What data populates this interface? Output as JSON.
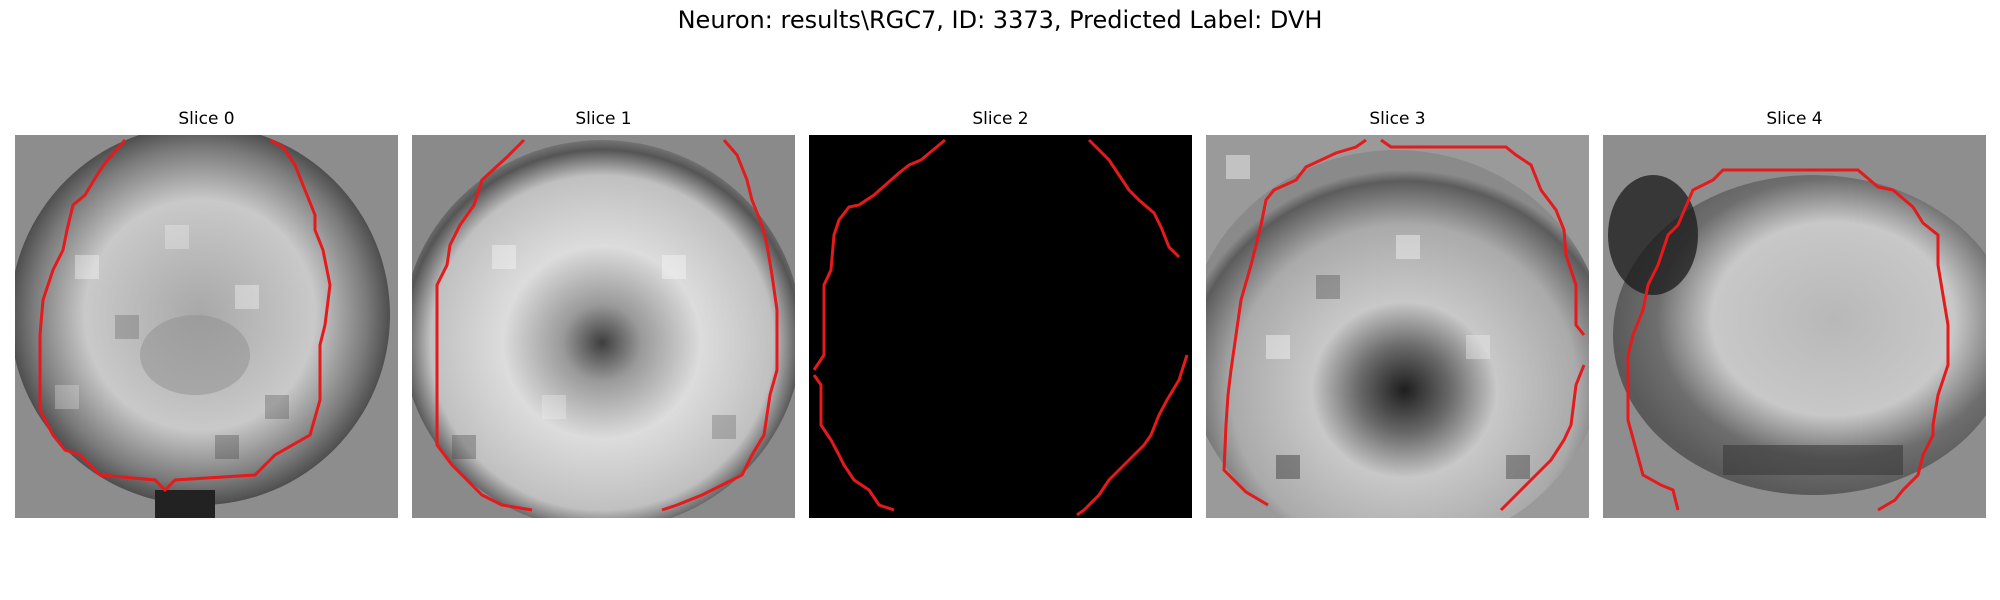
{
  "figure": {
    "title": "Neuron: results\\RGC7, ID: 3373, Predicted Label: DVH"
  },
  "panels": [
    {
      "title": "Slice 0",
      "image": "grayscale microscopy slice, bright rounded cell body with red contour outline",
      "contour_color": "#e41a1c"
    },
    {
      "title": "Slice 1",
      "image": "grayscale microscopy slice, bright cell body with dark center, red contour outline",
      "contour_color": "#e41a1c"
    },
    {
      "title": "Slice 2",
      "image": "black slice with red contour outline only",
      "contour_color": "#e41a1c"
    },
    {
      "title": "Slice 3",
      "image": "grayscale microscopy slice, textured cell body with dark central region, red contour outline",
      "contour_color": "#e41a1c"
    },
    {
      "title": "Slice 4",
      "image": "grayscale microscopy slice, bright oval cell body with red contour outline",
      "contour_color": "#e41a1c"
    }
  ]
}
